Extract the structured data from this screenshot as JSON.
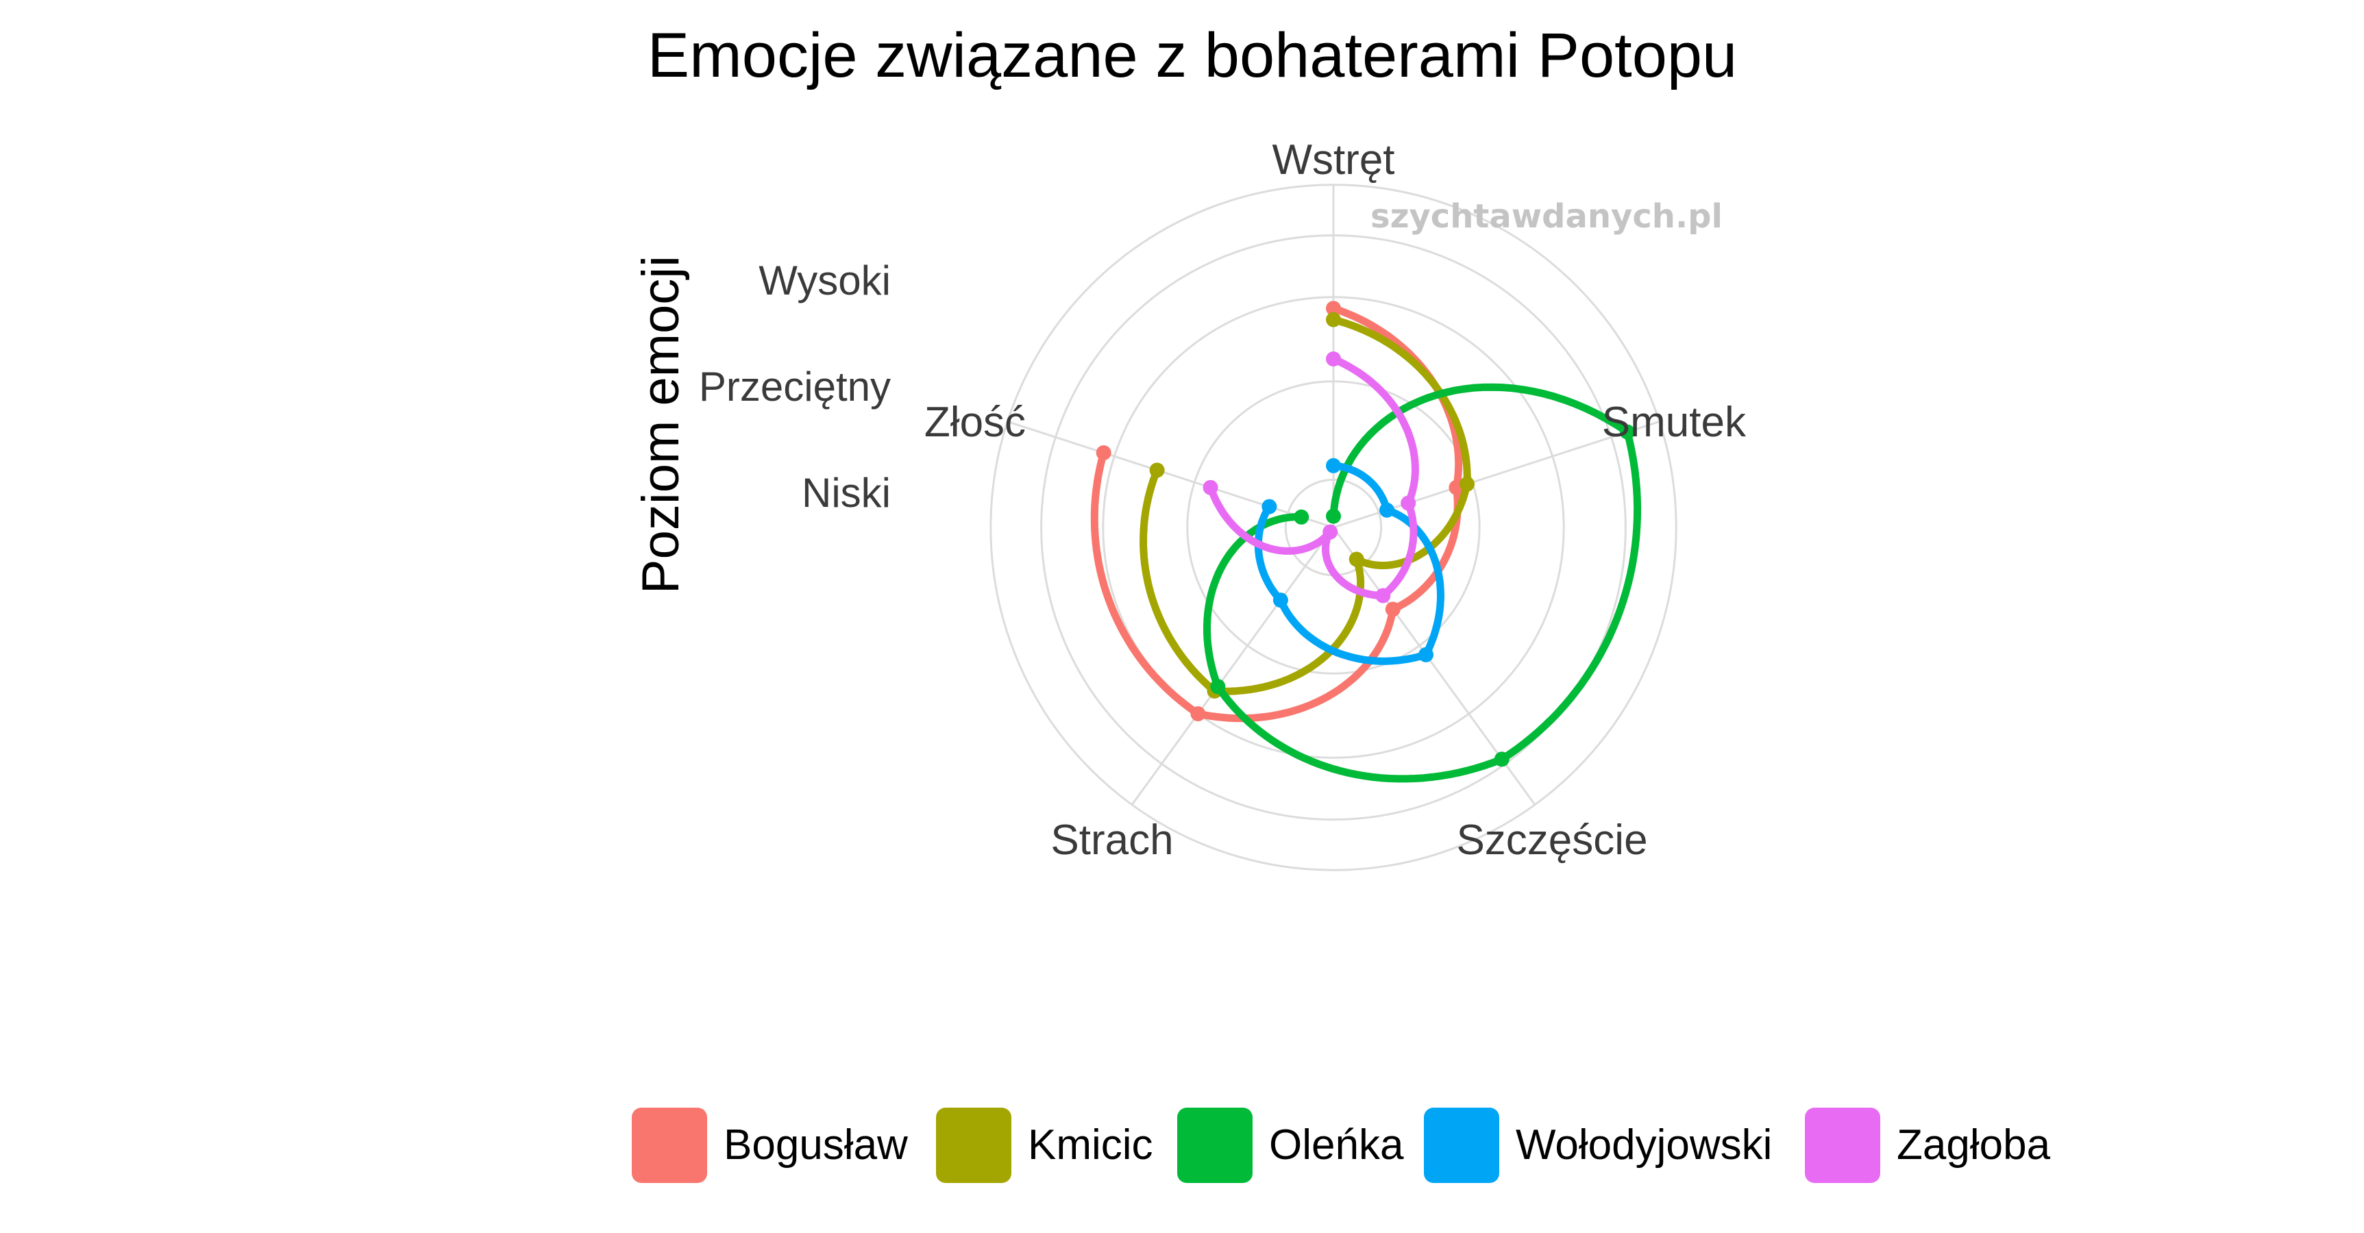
{
  "chart_data": {
    "type": "radar",
    "title": "Emocje związane z bohaterami Potopu",
    "ylabel": "Poziom emocji",
    "level_labels": [
      "Niski",
      "Przeciętny",
      "Wysoki"
    ],
    "axes": [
      "Wstręt",
      "Smutek",
      "Szczęście",
      "Strach",
      "Złość"
    ],
    "watermark": "szychtawdanych.pl",
    "rlim": [
      0,
      5
    ],
    "grid": true,
    "legend_position": "bottom",
    "series": [
      {
        "name": "Bogusław",
        "color": "#F8766D",
        "values": [
          3.9,
          2.3,
          1.8,
          4.1,
          4.3
        ]
      },
      {
        "name": "Kmicic",
        "color": "#A3A500",
        "values": [
          3.7,
          2.5,
          0.7,
          3.6,
          3.3
        ]
      },
      {
        "name": "Oleńka",
        "color": "#00BA38",
        "values": [
          0.2,
          5.5,
          5.1,
          3.5,
          0.6
        ]
      },
      {
        "name": "Wołodyjowski",
        "color": "#00A5F5",
        "values": [
          1.1,
          1.0,
          2.8,
          1.6,
          1.2
        ]
      },
      {
        "name": "Zagłoba",
        "color": "#E76BF3",
        "values": [
          3.0,
          1.4,
          1.5,
          0.1,
          2.3
        ]
      }
    ]
  }
}
